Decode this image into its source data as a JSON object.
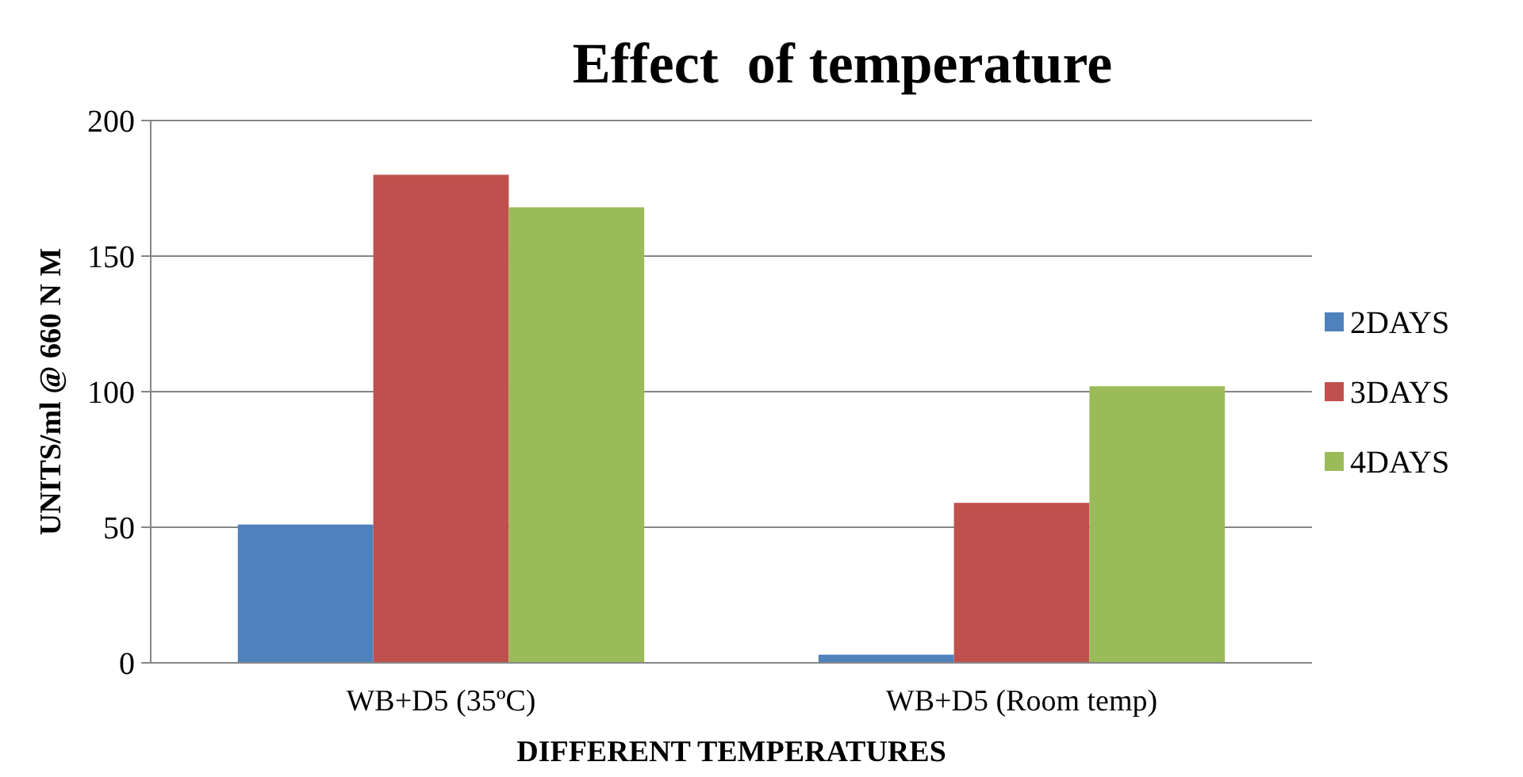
{
  "chart_data": {
    "type": "bar",
    "title": "Effect  of temperature",
    "xlabel": "DIFFERENT TEMPERATURES",
    "ylabel": "UNITS/ml @ 660 N M",
    "categories": [
      "WB+D5 (35ºC)",
      "WB+D5 (Room temp)"
    ],
    "series": [
      {
        "name": "2DAYS",
        "color": "#4f81bd",
        "values": [
          51,
          3
        ]
      },
      {
        "name": "3DAYS",
        "color": "#c0504d",
        "values": [
          180,
          59
        ]
      },
      {
        "name": "4DAYS",
        "color": "#9bbb59",
        "values": [
          168,
          102
        ]
      }
    ],
    "ylim": [
      0,
      200
    ],
    "yticks": [
      0,
      50,
      100,
      150,
      200
    ],
    "grid": "y",
    "legend": "right"
  }
}
